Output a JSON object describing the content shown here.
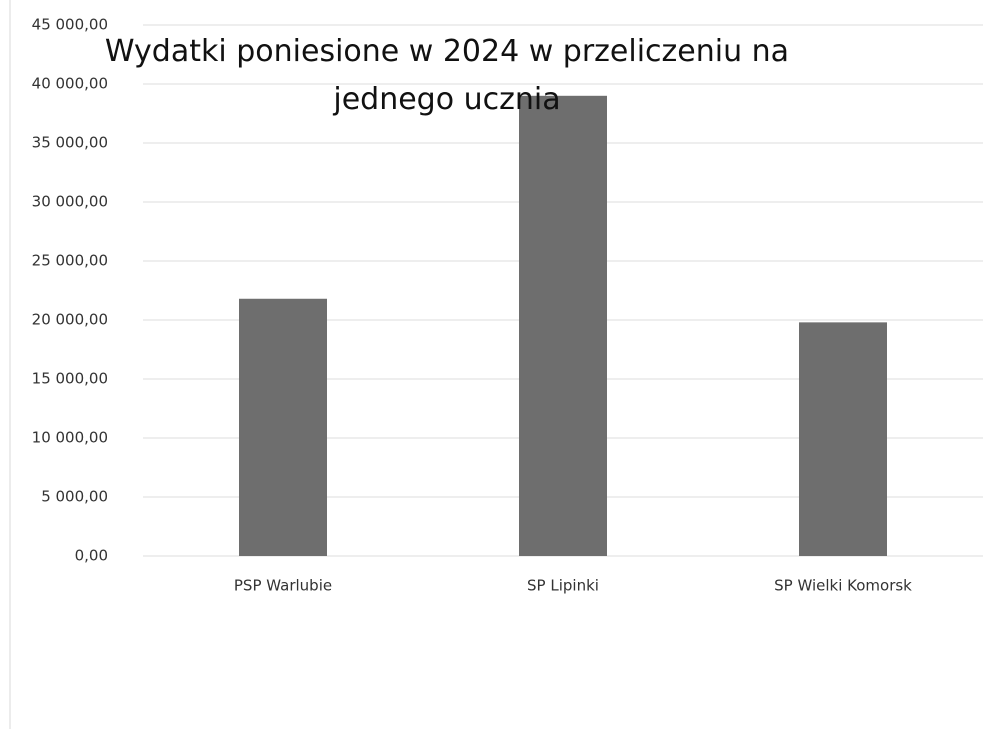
{
  "chart_data": {
    "type": "bar",
    "title": "Wydatki poniesione w 2024 w przeliczeniu na jednego ucznia",
    "categories": [
      "PSP Warlubie",
      "SP Lipinki",
      "SP Wielki Komorsk"
    ],
    "values": [
      21800,
      39000,
      19800
    ],
    "color": "#6e6e6e",
    "ylim": [
      0,
      45000
    ],
    "yticks": [
      {
        "value": 0,
        "label": "0,00"
      },
      {
        "value": 5000,
        "label": "5 000,00"
      },
      {
        "value": 10000,
        "label": "10 000,00"
      },
      {
        "value": 15000,
        "label": "15 000,00"
      },
      {
        "value": 20000,
        "label": "20 000,00"
      },
      {
        "value": 25000,
        "label": "25 000,00"
      },
      {
        "value": 30000,
        "label": "30 000,00"
      },
      {
        "value": 35000,
        "label": "35 000,00"
      },
      {
        "value": 40000,
        "label": "40 000,00"
      },
      {
        "value": 45000,
        "label": "45 000,00"
      }
    ],
    "grid": true
  }
}
